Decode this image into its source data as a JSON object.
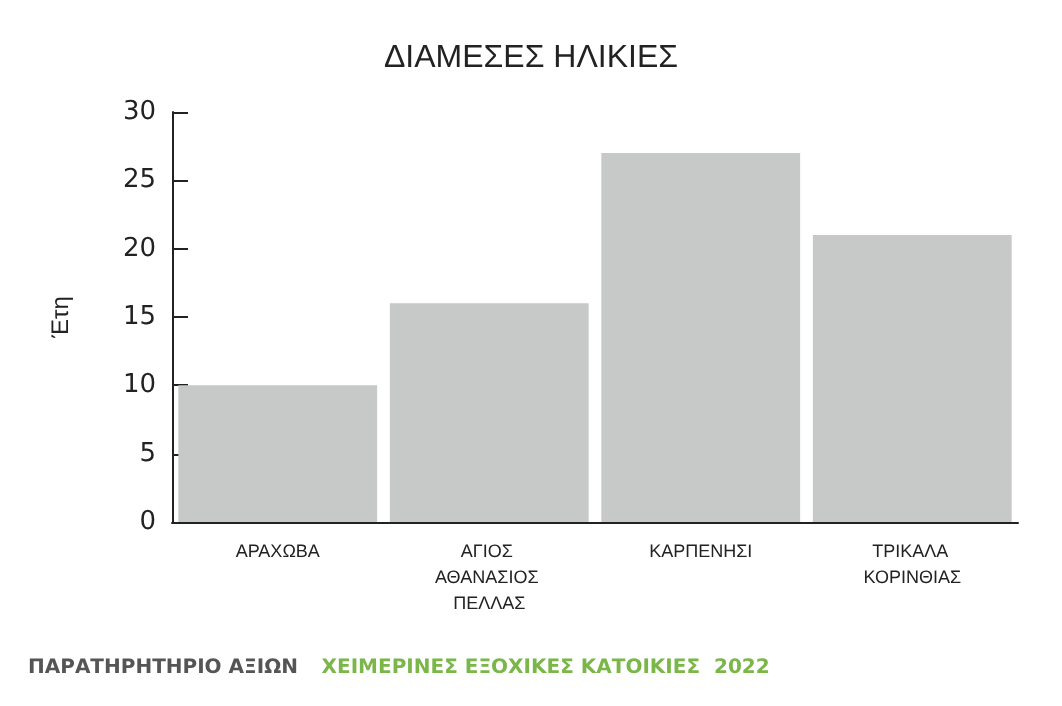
{
  "chart_data": {
    "type": "bar",
    "title": "ΔΙΑΜΕΣΕΣ ΗΛΙΚΙΕΣ",
    "ylabel": "Έτη",
    "categories": [
      "ΑΡΑΧΩΒΑ",
      "ΑΓΙΟΣ ΑΘΑΝΑΣΙΟΣ ΠΕΛΛΑΣ",
      "ΚΑΡΠΕΝΗΣΙ",
      "ΤΡΙΚΑΛΑ ΚΟΡΙΝΘΙΑΣ"
    ],
    "values": [
      10,
      16,
      27,
      21
    ],
    "color": "#c6c9c8",
    "ylim": [
      0,
      30
    ],
    "yticks": [
      0,
      5,
      10,
      15,
      20,
      25,
      30
    ],
    "grid": false,
    "annotations": [
      "ΠΑΡΑΤΗΡΗΤΗΡΙΟ ΑΞΙΩΝ",
      "ΧΕΙΜΕΡΙΝΕΣ ΕΞΟΧΙΚΕΣ ΚΑΤΟΙΚΙΕΣ  2022"
    ]
  }
}
